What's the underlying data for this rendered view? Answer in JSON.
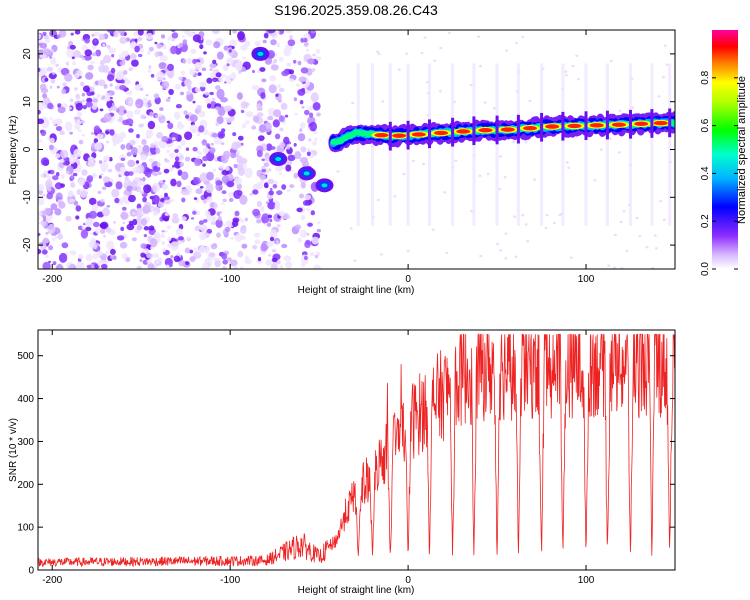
{
  "title": "S196.2025.359.08.26.C43",
  "chart_data": [
    {
      "type": "heatmap",
      "title": "S196.2025.359.08.26.C43",
      "xlabel": "Height of straight line (km)",
      "ylabel": "Frequency (Hz)",
      "xlim": [
        -208,
        150
      ],
      "ylim": [
        -25,
        25
      ],
      "xticks": [
        -200,
        -100,
        0,
        100
      ],
      "yticks": [
        -20,
        -10,
        0,
        10,
        20
      ],
      "colorbar": {
        "label": "Normalized spectral amplitude",
        "range": [
          0,
          1
        ],
        "ticks": [
          "0.0",
          "0.2",
          "0.4",
          "0.6",
          "0.8"
        ],
        "tick_values": [
          0.0,
          0.2,
          0.4,
          0.6,
          0.8
        ],
        "colors": [
          "#ffffff",
          "#a040ff",
          "#0000ff",
          "#00c8ff",
          "#00ff00",
          "#ffff00",
          "#ff0000",
          "#ff00a0"
        ]
      },
      "ridge": {
        "x": [
          -40,
          -30,
          -20,
          -10,
          0,
          20,
          40,
          60,
          80,
          100,
          120,
          140,
          150
        ],
        "frequency": [
          1.5,
          3.5,
          3.2,
          2.8,
          3.0,
          3.5,
          4.0,
          4.2,
          4.8,
          5.0,
          5.2,
          5.5,
          5.6
        ]
      },
      "early_blobs": [
        {
          "x": -83,
          "f": 20
        },
        {
          "x": -73,
          "f": -2
        },
        {
          "x": -57,
          "f": -5
        },
        {
          "x": -47,
          "f": -7.5
        }
      ],
      "noise_region": [
        -208,
        -50
      ]
    },
    {
      "type": "line",
      "xlabel": "Height of straight line (km)",
      "ylabel": "SNR (10 * v/v)",
      "xlim": [
        -208,
        150
      ],
      "ylim": [
        0,
        560
      ],
      "xticks": [
        -200,
        -100,
        0,
        100
      ],
      "yticks": [
        0,
        100,
        200,
        300,
        400,
        500
      ],
      "color": "#ee2222",
      "profile": {
        "x": [
          -208,
          -80,
          -70,
          -60,
          -50,
          -40,
          -35,
          -30,
          -20,
          -10,
          0,
          10,
          20,
          30,
          40,
          60,
          80,
          100,
          120,
          150
        ],
        "snr": [
          18,
          22,
          40,
          60,
          30,
          70,
          130,
          170,
          220,
          280,
          330,
          370,
          400,
          440,
          460,
          460,
          465,
          470,
          470,
          470
        ]
      },
      "dips": [
        -28,
        -20,
        -10,
        0,
        12,
        25,
        37,
        50,
        62,
        75,
        87,
        100,
        112,
        125,
        137,
        147
      ],
      "dip_floor": 18,
      "peak_max": 550
    }
  ]
}
